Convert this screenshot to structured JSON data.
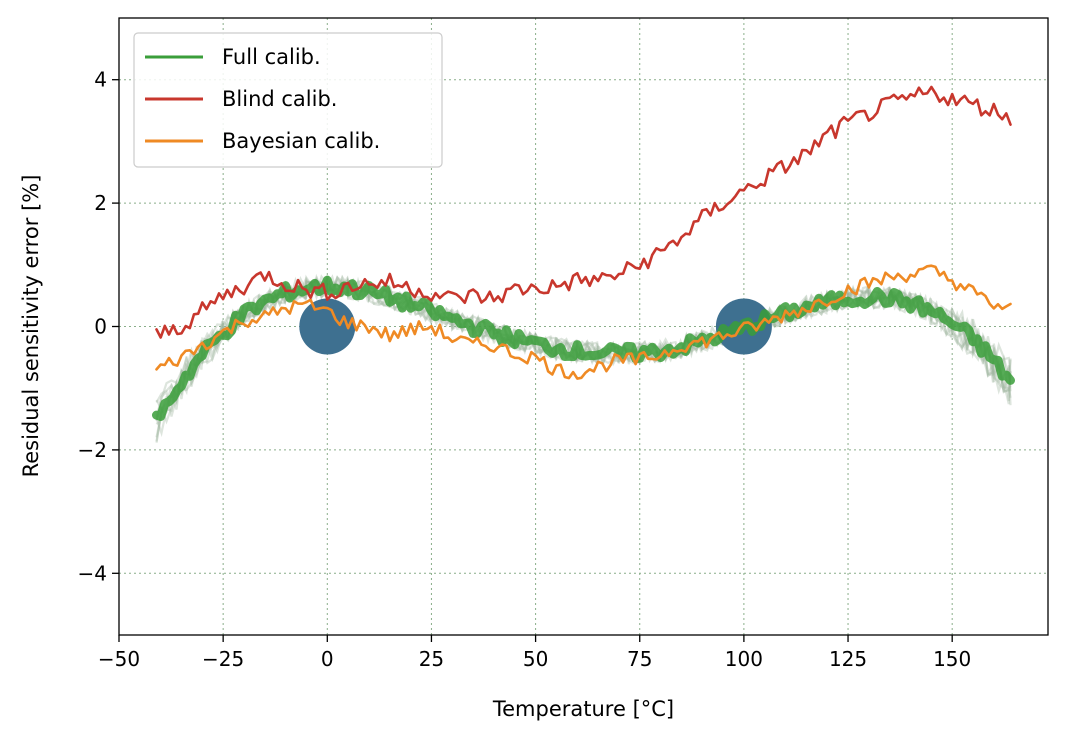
{
  "chart_data": {
    "type": "line",
    "title": "",
    "xlabel": "Temperature [°C]",
    "ylabel": "Residual sensitivity error [%]",
    "xlim": [
      -50,
      173
    ],
    "ylim": [
      -5,
      5
    ],
    "x_ticks": [
      -50,
      -25,
      0,
      25,
      50,
      75,
      100,
      125,
      150
    ],
    "x_tick_labels": [
      "−50",
      "−25",
      "0",
      "25",
      "50",
      "75",
      "100",
      "125",
      "150"
    ],
    "y_ticks": [
      -4,
      -2,
      0,
      2,
      4
    ],
    "y_tick_labels": [
      "−4",
      "−2",
      "0",
      "2",
      "4"
    ],
    "grid": true,
    "legend_position": "top-left",
    "x": [
      -41,
      -35,
      -30,
      -25,
      -20,
      -15,
      -10,
      -5,
      0,
      5,
      10,
      15,
      20,
      25,
      30,
      35,
      40,
      45,
      50,
      55,
      60,
      65,
      70,
      75,
      80,
      85,
      90,
      95,
      100,
      105,
      110,
      115,
      120,
      125,
      130,
      135,
      140,
      145,
      150,
      155,
      160,
      164
    ],
    "series": [
      {
        "name": "Full calib.",
        "color": "#3a9e3a",
        "values": [
          -1.5,
          -0.9,
          -0.45,
          -0.1,
          0.2,
          0.4,
          0.55,
          0.62,
          0.65,
          0.62,
          0.56,
          0.47,
          0.36,
          0.24,
          0.12,
          0.0,
          -0.1,
          -0.2,
          -0.28,
          -0.35,
          -0.4,
          -0.43,
          -0.44,
          -0.43,
          -0.4,
          -0.33,
          -0.24,
          -0.13,
          -0.02,
          0.1,
          0.21,
          0.31,
          0.39,
          0.45,
          0.48,
          0.46,
          0.38,
          0.25,
          0.05,
          -0.2,
          -0.55,
          -0.9
        ]
      },
      {
        "name": "Blind calib.",
        "color": "#c8372d",
        "values": [
          -0.15,
          0.0,
          0.25,
          0.5,
          0.65,
          0.85,
          0.7,
          0.6,
          0.55,
          0.65,
          0.7,
          0.72,
          0.62,
          0.55,
          0.45,
          0.5,
          0.45,
          0.6,
          0.62,
          0.65,
          0.75,
          0.75,
          0.85,
          1.0,
          1.2,
          1.45,
          1.75,
          2.0,
          2.2,
          2.4,
          2.6,
          2.8,
          3.1,
          3.3,
          3.45,
          3.6,
          3.7,
          3.8,
          3.7,
          3.6,
          3.5,
          3.4
        ]
      },
      {
        "name": "Bayesian calib.",
        "color": "#ef8a24",
        "values": [
          -0.7,
          -0.5,
          -0.3,
          -0.1,
          0.1,
          0.15,
          0.3,
          0.35,
          0.25,
          0.05,
          0.0,
          -0.15,
          -0.05,
          0.0,
          -0.2,
          -0.3,
          -0.3,
          -0.45,
          -0.5,
          -0.7,
          -0.75,
          -0.65,
          -0.55,
          -0.55,
          -0.45,
          -0.3,
          -0.25,
          -0.15,
          -0.05,
          0.05,
          0.2,
          0.3,
          0.45,
          0.6,
          0.7,
          0.8,
          0.85,
          0.9,
          0.75,
          0.55,
          0.35,
          0.28
        ]
      }
    ],
    "calibration_points": {
      "color": "#3e7090",
      "x": [
        0,
        100
      ],
      "y": [
        0,
        0
      ]
    },
    "background_band_color": "#9db59d"
  }
}
